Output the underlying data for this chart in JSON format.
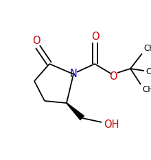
{
  "background_color": "#ffffff",
  "bond_color": "#000000",
  "nitrogen_color": "#0000bb",
  "oxygen_color": "#cc0000",
  "line_width": 1.3,
  "figsize": [
    2.2,
    2.33
  ],
  "dpi": 100,
  "xlim": [
    0,
    220
  ],
  "ylim": [
    0,
    233
  ]
}
